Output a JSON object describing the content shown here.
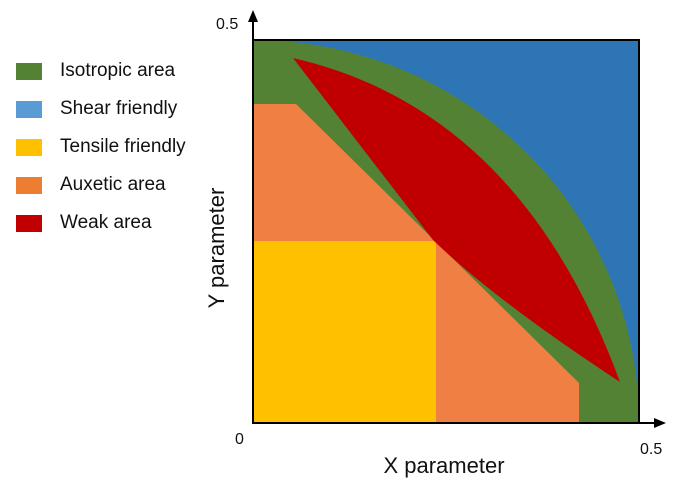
{
  "legend": {
    "items": [
      {
        "label": "Isotropic area",
        "color": "#548235"
      },
      {
        "label": "Shear friendly",
        "color": "#5B9BD5"
      },
      {
        "label": "Tensile friendly",
        "color": "#FFC000"
      },
      {
        "label": "Auxetic area",
        "color": "#ED7D31"
      },
      {
        "label": "Weak area",
        "color": "#C00000"
      }
    ]
  },
  "axes": {
    "xlabel": "X parameter",
    "ylabel": "Y parameter",
    "x_min_label": "0",
    "x_max_label": "0.5",
    "y_max_label": "0.5",
    "xlim": [
      0,
      0.5
    ],
    "ylim": [
      0,
      0.5
    ]
  },
  "regions": {
    "shear_color": "#2E75B6",
    "isotropic_color": "#548235",
    "tensile_color": "#FFC000",
    "auxetic_color": "#F07F44",
    "weak_color": "#C00000"
  }
}
